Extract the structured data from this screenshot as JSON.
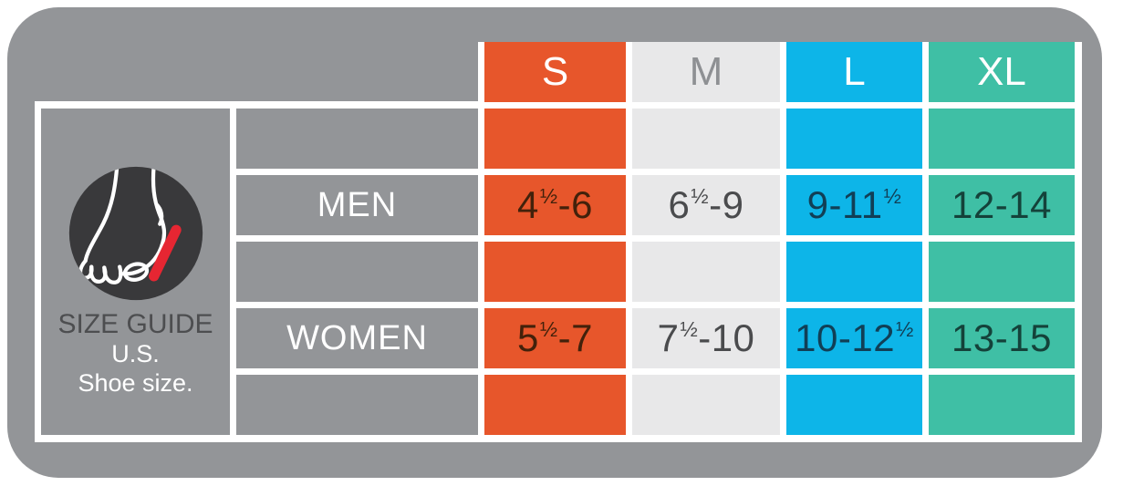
{
  "legend": {
    "title": "SIZE GUIDE",
    "line2": "U.S.",
    "line3": "Shoe size.",
    "icon": "foot-measure-icon",
    "icon_colors": {
      "circle": "#39393B",
      "outline": "#FFFFFF",
      "mark": "#E62632"
    }
  },
  "colors": {
    "panel": "#939598",
    "grid_lines": "#FFFFFF",
    "label_cell_bg": "#939598",
    "row_label_text": "#FFFFFF"
  },
  "chart_data": {
    "type": "table",
    "title": "SIZE GUIDE U.S. Shoe size.",
    "columns": [
      {
        "label": "S",
        "bg": "#E7562B",
        "header_text": "#FFFFFF",
        "value_text": "#42210B"
      },
      {
        "label": "M",
        "bg": "#E8E8E9",
        "header_text": "#8E9093",
        "value_text": "#4A4B4D"
      },
      {
        "label": "L",
        "bg": "#0DB5E8",
        "header_text": "#FFFFFF",
        "value_text": "#113F56"
      },
      {
        "label": "XL",
        "bg": "#3FBFA5",
        "header_text": "#FFFFFF",
        "value_text": "#14423A"
      }
    ],
    "rows": [
      {
        "label": "MEN",
        "values": [
          "4½-6",
          "6½-9",
          "9-11½",
          "12-14"
        ]
      },
      {
        "label": "WOMEN",
        "values": [
          "5½-7",
          "7½-10",
          "10-12½",
          "13-15"
        ]
      }
    ]
  }
}
